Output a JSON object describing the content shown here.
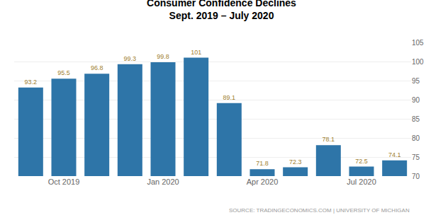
{
  "chart_data": {
    "type": "bar",
    "title": "Consumer Confidence Declines",
    "subtitle": "Sept. 2019 – July 2020",
    "categories": [
      null,
      "Oct 2019",
      null,
      null,
      "Jan 2020",
      null,
      null,
      "Apr 2020",
      null,
      null,
      "Jul 2020",
      null
    ],
    "values": [
      93.2,
      95.5,
      96.8,
      99.3,
      99.8,
      101.0,
      89.1,
      71.8,
      72.3,
      78.1,
      72.5,
      74.1
    ],
    "value_labels": [
      "93.2",
      "95.5",
      "96.8",
      "99.3",
      "99.8",
      "101",
      "89.1",
      "71.8",
      "72.3",
      "78.1",
      "72.5",
      "74.1"
    ],
    "data_labels": true,
    "color": "#2e75a8",
    "ylim": [
      70,
      105
    ],
    "yticks": [
      70,
      75,
      80,
      85,
      90,
      95,
      100,
      105
    ],
    "grid": true,
    "annotations": [
      "SOURCE: TRADINGECONOMICS.COM | UNIVERSITY OF MICHIGAN"
    ]
  }
}
